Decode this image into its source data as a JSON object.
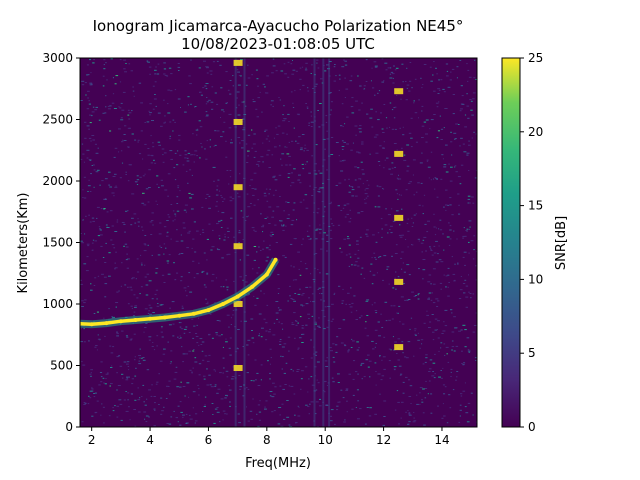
{
  "chart_data": {
    "type": "heatmap",
    "title": "Ionogram Jicamarca-Ayacucho Polarization NE45°",
    "subtitle": "10/08/2023-01:08:05 UTC",
    "xlabel": "Freq(MHz)",
    "ylabel": "Kilometers(Km)",
    "xlim": [
      1.6,
      15.2
    ],
    "ylim": [
      0,
      3000
    ],
    "xticks": [
      "2",
      "4",
      "6",
      "8",
      "10",
      "12",
      "14"
    ],
    "yticks": [
      "0",
      "500",
      "1000",
      "1500",
      "2000",
      "2500",
      "3000"
    ],
    "colorbar": {
      "label": "SNR[dB]",
      "range": [
        0,
        25
      ],
      "ticks": [
        "0",
        "5",
        "10",
        "15",
        "20",
        "25"
      ],
      "colormap": "viridis"
    },
    "colors": {
      "low": "#440154",
      "mid": "#21918c",
      "high": "#fde725"
    },
    "trace": {
      "freq_mhz": [
        1.6,
        2.0,
        2.5,
        3.0,
        3.5,
        4.0,
        4.5,
        5.0,
        5.5,
        6.0,
        6.5,
        7.0,
        7.5,
        8.0,
        8.3
      ],
      "range_km": [
        840,
        835,
        845,
        860,
        870,
        880,
        890,
        905,
        920,
        950,
        1000,
        1060,
        1140,
        1240,
        1360
      ]
    },
    "features": [
      {
        "freq_mhz": 7.0,
        "range_km": [
          480,
          1000,
          1470,
          1950,
          2480,
          2960
        ]
      },
      {
        "freq_mhz": 12.5,
        "range_km": [
          2730,
          2220,
          1700,
          1180,
          650
        ]
      }
    ]
  }
}
